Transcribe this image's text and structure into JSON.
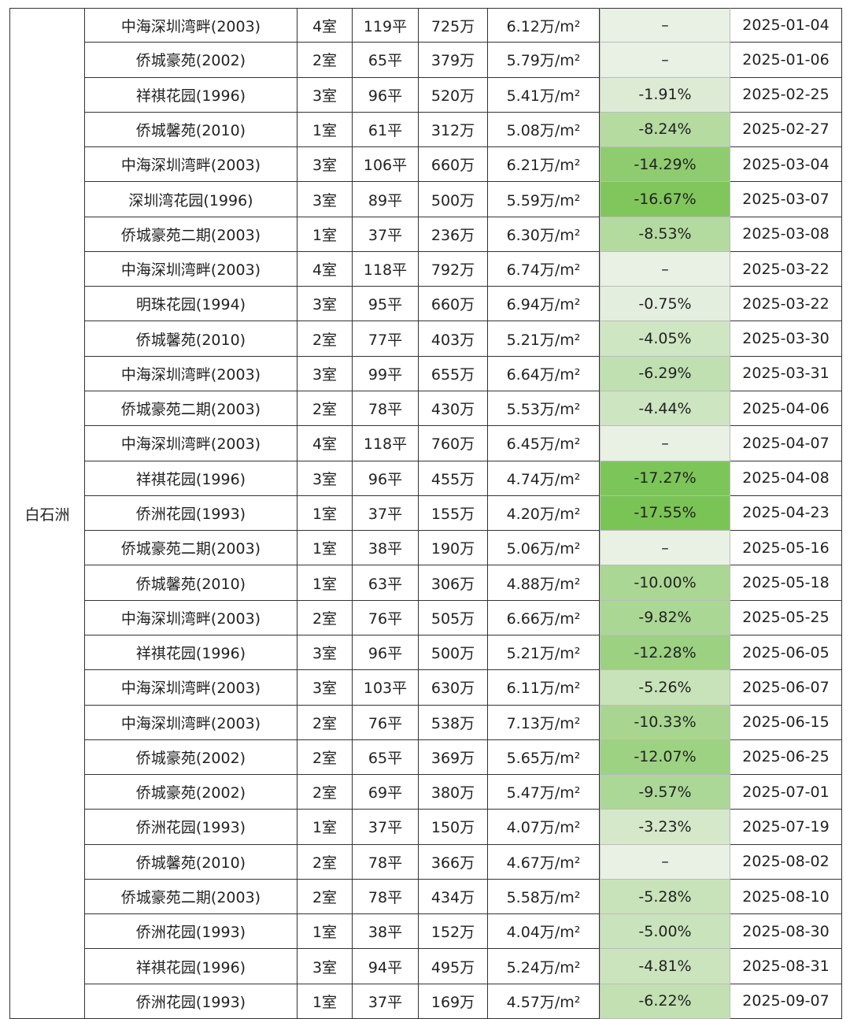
{
  "district": "白石洲",
  "rows": [
    [
      "中海深圳湾畔(2003)",
      "4室",
      "119平",
      "725万",
      "6.12万/m²",
      "–",
      "2025-01-04"
    ],
    [
      "侨城豪苑(2002)",
      "2室",
      "65平",
      "379万",
      "5.79万/m²",
      "–",
      "2025-01-06"
    ],
    [
      "祥祺花园(1996)",
      "3室",
      "96平",
      "520万",
      "5.41万/m²",
      "-1.91%",
      "2025-02-25"
    ],
    [
      "侨城馨苑(2010)",
      "1室",
      "61平",
      "312万",
      "5.08万/m²",
      "-8.24%",
      "2025-02-27"
    ],
    [
      "中海深圳湾畔(2003)",
      "3室",
      "106平",
      "660万",
      "6.21万/m²",
      "-14.29%",
      "2025-03-04"
    ],
    [
      "深圳湾花园(1996)",
      "3室",
      "89平",
      "500万",
      "5.59万/m²",
      "-16.67%",
      "2025-03-07"
    ],
    [
      "侨城豪苑二期(2003)",
      "1室",
      "37平",
      "236万",
      "6.30万/m²",
      "-8.53%",
      "2025-03-08"
    ],
    [
      "中海深圳湾畔(2003)",
      "4室",
      "118平",
      "792万",
      "6.74万/m²",
      "–",
      "2025-03-22"
    ],
    [
      "明珠花园(1994)",
      "3室",
      "95平",
      "660万",
      "6.94万/m²",
      "-0.75%",
      "2025-03-22"
    ],
    [
      "侨城馨苑(2010)",
      "2室",
      "77平",
      "403万",
      "5.21万/m²",
      "-4.05%",
      "2025-03-30"
    ],
    [
      "中海深圳湾畔(2003)",
      "3室",
      "99平",
      "655万",
      "6.64万/m²",
      "-6.29%",
      "2025-03-31"
    ],
    [
      "侨城豪苑二期(2003)",
      "2室",
      "78平",
      "430万",
      "5.53万/m²",
      "-4.44%",
      "2025-04-06"
    ],
    [
      "中海深圳湾畔(2003)",
      "4室",
      "118平",
      "760万",
      "6.45万/m²",
      "–",
      "2025-04-07"
    ],
    [
      "祥祺花园(1996)",
      "3室",
      "96平",
      "455万",
      "4.74万/m²",
      "-17.27%",
      "2025-04-08"
    ],
    [
      "侨洲花园(1993)",
      "1室",
      "37平",
      "155万",
      "4.20万/m²",
      "-17.55%",
      "2025-04-23"
    ],
    [
      "侨城豪苑二期(2003)",
      "1室",
      "38平",
      "190万",
      "5.06万/m²",
      "–",
      "2025-05-16"
    ],
    [
      "侨城馨苑(2010)",
      "1室",
      "63平",
      "306万",
      "4.88万/m²",
      "-10.00%",
      "2025-05-18"
    ],
    [
      "中海深圳湾畔(2003)",
      "2室",
      "76平",
      "505万",
      "6.66万/m²",
      "-9.82%",
      "2025-05-25"
    ],
    [
      "祥祺花园(1996)",
      "3室",
      "96平",
      "500万",
      "5.21万/m²",
      "-12.28%",
      "2025-06-05"
    ],
    [
      "中海深圳湾畔(2003)",
      "3室",
      "103平",
      "630万",
      "6.11万/m²",
      "-5.26%",
      "2025-06-07"
    ],
    [
      "中海深圳湾畔(2003)",
      "2室",
      "76平",
      "538万",
      "7.13万/m²",
      "-10.33%",
      "2025-06-15"
    ],
    [
      "侨城豪苑(2002)",
      "2室",
      "65平",
      "369万",
      "5.65万/m²",
      "-12.07%",
      "2025-06-25"
    ],
    [
      "侨城豪苑(2002)",
      "2室",
      "69平",
      "380万",
      "5.47万/m²",
      "-9.57%",
      "2025-07-01"
    ],
    [
      "侨洲花园(1993)",
      "1室",
      "37平",
      "150万",
      "4.07万/m²",
      "-3.23%",
      "2025-07-19"
    ],
    [
      "侨城馨苑(2010)",
      "2室",
      "78平",
      "366万",
      "4.67万/m²",
      "–",
      "2025-08-02"
    ],
    [
      "侨城豪苑二期(2003)",
      "2室",
      "78平",
      "434万",
      "5.58万/m²",
      "-5.28%",
      "2025-08-10"
    ],
    [
      "侨洲花园(1993)",
      "1室",
      "38平",
      "152万",
      "4.04万/m²",
      "-5.00%",
      "2025-08-30"
    ],
    [
      "祥祺花园(1996)",
      "3室",
      "94平",
      "495万",
      "5.24万/m²",
      "-4.81%",
      "2025-08-31"
    ],
    [
      "侨洲花园(1993)",
      "1室",
      "37平",
      "169万",
      "4.57万/m²",
      "-6.22%",
      "2025-09-07"
    ]
  ]
}
